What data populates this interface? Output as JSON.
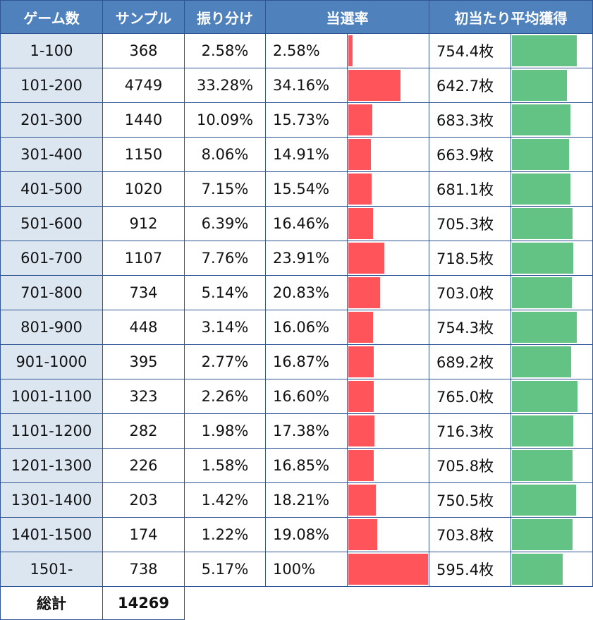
{
  "headers": [
    "ゲーム数",
    "サンプル",
    "振り分け",
    "当選率",
    "初当たり平均獲得"
  ],
  "rows": [
    [
      "1-100",
      "368",
      "2.58%",
      "2.58%",
      2.58,
      "754.4枚",
      754.4
    ],
    [
      "101-200",
      "4749",
      "33.28%",
      "34.16%",
      34.16,
      "642.7枚",
      642.7
    ],
    [
      "201-300",
      "1440",
      "10.09%",
      "15.73%",
      15.73,
      "683.3枚",
      683.3
    ],
    [
      "301-400",
      "1150",
      "8.06%",
      "14.91%",
      14.91,
      "663.9枚",
      663.9
    ],
    [
      "401-500",
      "1020",
      "7.15%",
      "15.54%",
      15.54,
      "681.1枚",
      681.1
    ],
    [
      "501-600",
      "912",
      "6.39%",
      "16.46%",
      16.46,
      "705.3枚",
      705.3
    ],
    [
      "601-700",
      "1107",
      "7.76%",
      "23.91%",
      23.91,
      "718.5枚",
      718.5
    ],
    [
      "701-800",
      "734",
      "5.14%",
      "20.83%",
      20.83,
      "703.0枚",
      703.0
    ],
    [
      "801-900",
      "448",
      "3.14%",
      "16.06%",
      16.06,
      "754.3枚",
      754.3
    ],
    [
      "901-1000",
      "395",
      "2.77%",
      "16.87%",
      16.87,
      "689.2枚",
      689.2
    ],
    [
      "1001-1100",
      "323",
      "2.26%",
      "16.60%",
      16.6,
      "765.0枚",
      765.0
    ],
    [
      "1101-1200",
      "282",
      "1.98%",
      "17.38%",
      17.38,
      "716.3枚",
      716.3
    ],
    [
      "1201-1300",
      "226",
      "1.58%",
      "16.85%",
      16.85,
      "705.8枚",
      705.8
    ],
    [
      "1301-1400",
      "203",
      "1.42%",
      "18.21%",
      18.21,
      "750.5枚",
      750.5
    ],
    [
      "1401-1500",
      "174",
      "1.22%",
      "19.08%",
      19.08,
      "703.8枚",
      703.8
    ],
    [
      "1501-",
      "738",
      "5.17%",
      "100%",
      100,
      "595.4枚",
      595.4
    ]
  ],
  "total": {
    "label": "総計",
    "value": "14269"
  },
  "colors": {
    "header": "#4f81bd",
    "rate_bar": "#ff5459",
    "medal_bar": "#63c384",
    "label_bg": "#dce6f1"
  }
}
